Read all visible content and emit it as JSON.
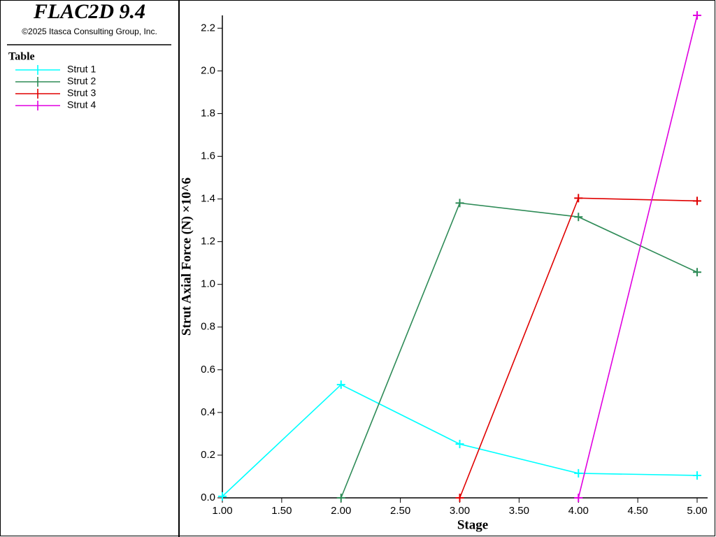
{
  "header": {
    "title": "FLAC2D 9.4",
    "copyright": "©2025 Itasca Consulting Group, Inc."
  },
  "legend_title": "Table",
  "chart_data": {
    "type": "line",
    "x": [
      1,
      2,
      3,
      4,
      5
    ],
    "xlabel": "Stage",
    "ylabel": "Strut Axial Force (N) ×10^6",
    "series": [
      {
        "name": "Strut 1",
        "color": "#00ffff",
        "values": [
          0.007,
          0.53,
          0.252,
          0.115,
          0.105
        ]
      },
      {
        "name": "Strut 2",
        "color": "#2e8b57",
        "values": [
          null,
          0.0,
          1.381,
          1.316,
          1.057
        ]
      },
      {
        "name": "Strut 3",
        "color": "#e00000",
        "values": [
          null,
          null,
          0.0,
          1.404,
          1.391
        ]
      },
      {
        "name": "Strut 4",
        "color": "#e000e0",
        "values": [
          null,
          null,
          null,
          0.0,
          2.26
        ]
      }
    ],
    "xlim": [
      1,
      5
    ],
    "ylim": [
      0,
      2.26
    ],
    "xticks": [
      {
        "value": 1,
        "label": "1.00"
      },
      {
        "value": 1.5,
        "label": "1.50"
      },
      {
        "value": 2,
        "label": "2.00"
      },
      {
        "value": 2.5,
        "label": "2.50"
      },
      {
        "value": 3,
        "label": "3.00"
      },
      {
        "value": 3.5,
        "label": "3.50"
      },
      {
        "value": 4,
        "label": "4.00"
      },
      {
        "value": 4.5,
        "label": "4.50"
      },
      {
        "value": 5,
        "label": "5.00"
      }
    ],
    "yticks": [
      {
        "value": 0,
        "label": "0.0"
      },
      0.2,
      0.4,
      0.6,
      0.8,
      {
        "value": 1,
        "label": "1.0"
      },
      1.2,
      1.4,
      1.6,
      1.8,
      {
        "value": 2,
        "label": "2.0"
      },
      2.2
    ]
  }
}
